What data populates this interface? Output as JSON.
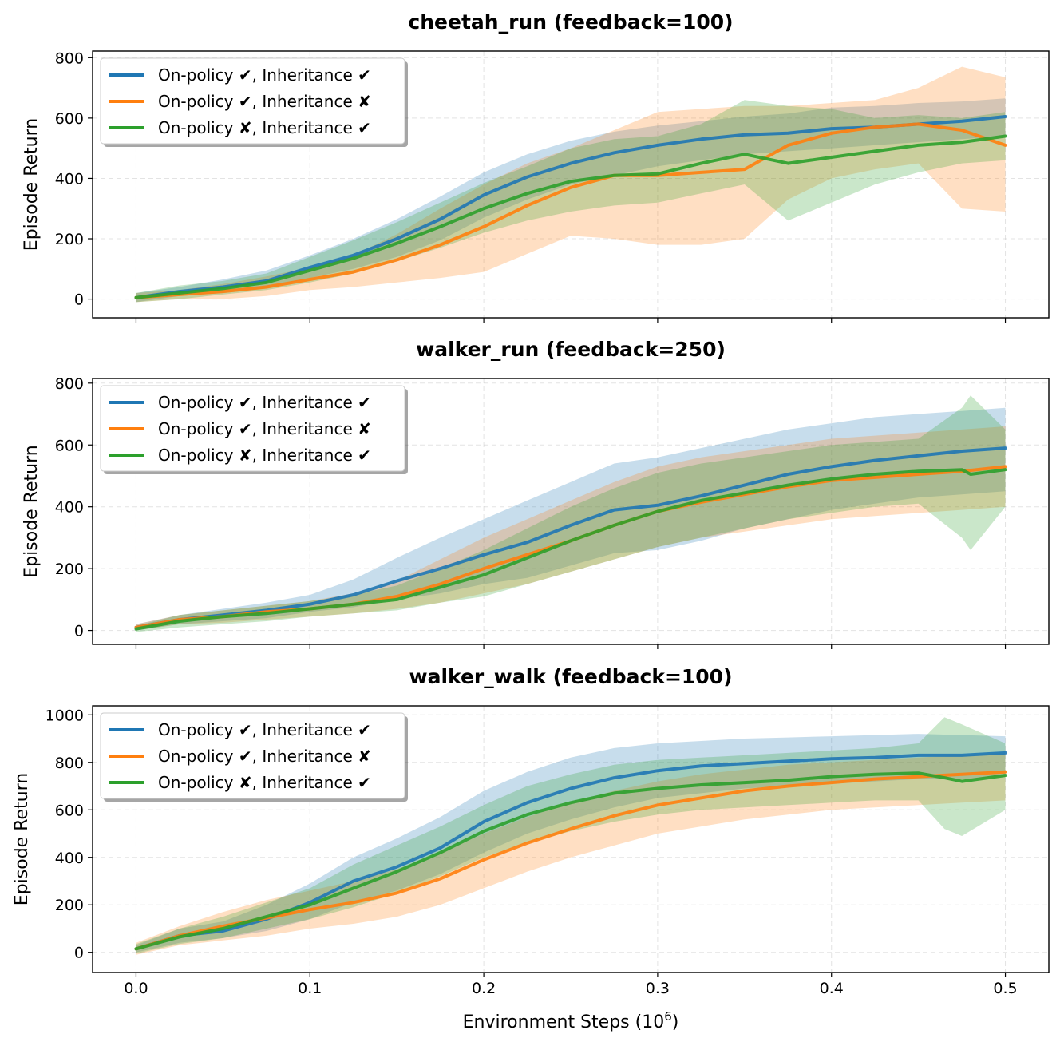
{
  "figure": {
    "xlabel": "Environment Steps (10",
    "xlabel_exp": "6",
    "xlabel_close": ")"
  },
  "colors": {
    "blue": "#1f77b4",
    "orange": "#ff7f0e",
    "green": "#2ca02c"
  },
  "chart_data": [
    {
      "type": "line",
      "title": "cheetah_run (feedback=100)",
      "xlabel": "",
      "ylabel": "Episode Return",
      "xlim": [
        -0.025,
        0.525
      ],
      "ylim": [
        -62,
        822
      ],
      "xticks": [
        0.0,
        0.1,
        0.2,
        0.3,
        0.4,
        0.5
      ],
      "xtick_labels": [
        "",
        "",
        "",
        "",
        "",
        ""
      ],
      "yticks": [
        0,
        200,
        400,
        600,
        800
      ],
      "ytick_labels": [
        "0",
        "200",
        "400",
        "600",
        "800"
      ],
      "grid": true,
      "legend_position": "upper-left",
      "series": [
        {
          "name": "On-policy ✔, Inheritance ✔",
          "color": "#1f77b4",
          "x": [
            0,
            0.025,
            0.05,
            0.075,
            0.1,
            0.125,
            0.15,
            0.175,
            0.2,
            0.225,
            0.25,
            0.275,
            0.3,
            0.325,
            0.35,
            0.375,
            0.4,
            0.425,
            0.45,
            0.475,
            0.5
          ],
          "y": [
            5,
            25,
            40,
            60,
            105,
            145,
            200,
            265,
            345,
            405,
            450,
            485,
            510,
            530,
            545,
            550,
            565,
            570,
            580,
            590,
            605
          ],
          "lower": [
            -10,
            10,
            20,
            35,
            70,
            100,
            140,
            195,
            270,
            330,
            380,
            410,
            440,
            460,
            480,
            490,
            500,
            510,
            520,
            530,
            540
          ],
          "upper": [
            20,
            40,
            65,
            95,
            145,
            200,
            265,
            340,
            420,
            480,
            525,
            555,
            575,
            590,
            605,
            615,
            635,
            640,
            650,
            655,
            665
          ]
        },
        {
          "name": "On-policy ✔, Inheritance ✘",
          "color": "#ff7f0e",
          "x": [
            0,
            0.025,
            0.05,
            0.075,
            0.1,
            0.125,
            0.15,
            0.175,
            0.2,
            0.225,
            0.25,
            0.275,
            0.3,
            0.325,
            0.35,
            0.375,
            0.4,
            0.425,
            0.45,
            0.475,
            0.5
          ],
          "y": [
            5,
            15,
            25,
            40,
            65,
            90,
            130,
            180,
            240,
            310,
            370,
            410,
            410,
            420,
            430,
            510,
            550,
            570,
            580,
            560,
            510
          ],
          "lower": [
            -10,
            0,
            0,
            10,
            30,
            40,
            55,
            70,
            90,
            150,
            210,
            200,
            180,
            180,
            200,
            330,
            400,
            430,
            450,
            300,
            290
          ],
          "upper": [
            20,
            30,
            50,
            75,
            105,
            145,
            215,
            300,
            380,
            450,
            500,
            560,
            620,
            630,
            640,
            640,
            650,
            660,
            700,
            770,
            735
          ]
        },
        {
          "name": "On-policy ✘, Inheritance ✔",
          "color": "#2ca02c",
          "x": [
            0,
            0.025,
            0.05,
            0.075,
            0.1,
            0.125,
            0.15,
            0.175,
            0.2,
            0.225,
            0.25,
            0.275,
            0.3,
            0.325,
            0.35,
            0.375,
            0.4,
            0.425,
            0.45,
            0.475,
            0.5
          ],
          "y": [
            5,
            20,
            35,
            55,
            95,
            135,
            185,
            240,
            300,
            350,
            390,
            410,
            415,
            450,
            480,
            450,
            470,
            490,
            510,
            520,
            540
          ],
          "lower": [
            -10,
            0,
            15,
            30,
            55,
            85,
            125,
            170,
            220,
            260,
            290,
            310,
            320,
            350,
            380,
            260,
            320,
            380,
            420,
            450,
            460
          ],
          "upper": [
            20,
            45,
            60,
            85,
            140,
            195,
            255,
            320,
            385,
            440,
            500,
            530,
            540,
            580,
            660,
            640,
            630,
            600,
            610,
            600,
            620
          ]
        }
      ]
    },
    {
      "type": "line",
      "title": "walker_run (feedback=250)",
      "xlabel": "",
      "ylabel": "Episode Return",
      "xlim": [
        -0.025,
        0.525
      ],
      "ylim": [
        -45,
        815
      ],
      "xticks": [
        0.0,
        0.1,
        0.2,
        0.3,
        0.4,
        0.5
      ],
      "xtick_labels": [
        "",
        "",
        "",
        "",
        "",
        ""
      ],
      "yticks": [
        0,
        200,
        400,
        600,
        800
      ],
      "ytick_labels": [
        "0",
        "200",
        "400",
        "600",
        "800"
      ],
      "grid": true,
      "legend_position": "upper-left",
      "series": [
        {
          "name": "On-policy ✔, Inheritance ✔",
          "color": "#1f77b4",
          "x": [
            0,
            0.025,
            0.05,
            0.075,
            0.1,
            0.125,
            0.15,
            0.175,
            0.2,
            0.225,
            0.25,
            0.275,
            0.3,
            0.325,
            0.35,
            0.375,
            0.4,
            0.425,
            0.45,
            0.475,
            0.5
          ],
          "y": [
            10,
            35,
            50,
            65,
            85,
            115,
            160,
            200,
            245,
            285,
            340,
            390,
            405,
            435,
            470,
            505,
            530,
            550,
            565,
            580,
            590
          ],
          "lower": [
            0,
            20,
            30,
            40,
            60,
            75,
            100,
            120,
            150,
            170,
            210,
            250,
            260,
            290,
            330,
            360,
            390,
            410,
            430,
            440,
            450
          ],
          "upper": [
            20,
            50,
            70,
            90,
            115,
            165,
            235,
            300,
            360,
            420,
            480,
            540,
            560,
            590,
            620,
            650,
            670,
            690,
            700,
            710,
            720
          ]
        },
        {
          "name": "On-policy ✔, Inheritance ✘",
          "color": "#ff7f0e",
          "x": [
            0,
            0.025,
            0.05,
            0.075,
            0.1,
            0.125,
            0.15,
            0.175,
            0.2,
            0.225,
            0.25,
            0.275,
            0.3,
            0.325,
            0.35,
            0.375,
            0.4,
            0.425,
            0.45,
            0.475,
            0.5
          ],
          "y": [
            10,
            35,
            45,
            60,
            70,
            85,
            110,
            150,
            200,
            245,
            290,
            340,
            385,
            415,
            440,
            465,
            485,
            495,
            505,
            515,
            530
          ],
          "lower": [
            0,
            20,
            25,
            35,
            45,
            55,
            70,
            90,
            120,
            150,
            190,
            230,
            270,
            300,
            320,
            340,
            360,
            370,
            380,
            390,
            400
          ],
          "upper": [
            20,
            50,
            65,
            80,
            95,
            120,
            160,
            230,
            300,
            360,
            420,
            480,
            530,
            560,
            580,
            600,
            620,
            630,
            640,
            650,
            660
          ]
        },
        {
          "name": "On-policy ✘, Inheritance ✔",
          "color": "#2ca02c",
          "x": [
            0,
            0.025,
            0.05,
            0.075,
            0.1,
            0.125,
            0.15,
            0.175,
            0.2,
            0.225,
            0.25,
            0.275,
            0.3,
            0.325,
            0.35,
            0.375,
            0.4,
            0.425,
            0.45,
            0.475,
            0.48,
            0.5
          ],
          "y": [
            5,
            30,
            45,
            55,
            70,
            85,
            100,
            140,
            180,
            235,
            290,
            340,
            385,
            420,
            445,
            470,
            490,
            505,
            515,
            520,
            505,
            520
          ],
          "lower": [
            -5,
            10,
            20,
            30,
            45,
            55,
            65,
            90,
            110,
            150,
            190,
            230,
            270,
            300,
            330,
            360,
            380,
            400,
            410,
            300,
            260,
            400
          ],
          "upper": [
            15,
            50,
            65,
            80,
            95,
            115,
            145,
            200,
            260,
            330,
            400,
            460,
            510,
            540,
            560,
            580,
            600,
            610,
            620,
            720,
            760,
            650
          ]
        }
      ]
    },
    {
      "type": "line",
      "title": "walker_walk (feedback=100)",
      "xlabel": "Environment Steps (10^6)",
      "ylabel": "Episode Return",
      "xlim": [
        -0.025,
        0.525
      ],
      "ylim": [
        -85,
        1038
      ],
      "xticks": [
        0.0,
        0.1,
        0.2,
        0.3,
        0.4,
        0.5
      ],
      "xtick_labels": [
        "0.0",
        "0.1",
        "0.2",
        "0.3",
        "0.4",
        "0.5"
      ],
      "yticks": [
        0,
        200,
        400,
        600,
        800,
        1000
      ],
      "ytick_labels": [
        "0",
        "200",
        "400",
        "600",
        "800",
        "1000"
      ],
      "grid": true,
      "legend_position": "upper-left",
      "series": [
        {
          "name": "On-policy ✔, Inheritance ✔",
          "color": "#1f77b4",
          "x": [
            0,
            0.025,
            0.05,
            0.075,
            0.1,
            0.125,
            0.15,
            0.175,
            0.2,
            0.225,
            0.25,
            0.275,
            0.3,
            0.325,
            0.35,
            0.375,
            0.4,
            0.425,
            0.45,
            0.475,
            0.5
          ],
          "y": [
            15,
            70,
            90,
            140,
            210,
            300,
            360,
            440,
            550,
            630,
            690,
            735,
            765,
            785,
            795,
            805,
            815,
            820,
            830,
            830,
            840
          ],
          "lower": [
            0,
            40,
            60,
            90,
            140,
            210,
            260,
            330,
            420,
            500,
            560,
            610,
            650,
            670,
            690,
            700,
            710,
            720,
            730,
            730,
            740
          ],
          "upper": [
            30,
            100,
            130,
            200,
            290,
            400,
            480,
            570,
            680,
            760,
            820,
            860,
            880,
            890,
            900,
            905,
            910,
            915,
            920,
            915,
            910
          ]
        },
        {
          "name": "On-policy ✔, Inheritance ✘",
          "color": "#ff7f0e",
          "x": [
            0,
            0.025,
            0.05,
            0.075,
            0.1,
            0.125,
            0.15,
            0.175,
            0.2,
            0.225,
            0.25,
            0.275,
            0.3,
            0.325,
            0.35,
            0.375,
            0.4,
            0.425,
            0.45,
            0.475,
            0.5
          ],
          "y": [
            15,
            70,
            110,
            145,
            180,
            210,
            250,
            310,
            390,
            460,
            520,
            575,
            620,
            650,
            680,
            700,
            715,
            730,
            740,
            750,
            760
          ],
          "lower": [
            -10,
            30,
            50,
            70,
            100,
            120,
            150,
            200,
            270,
            340,
            400,
            450,
            500,
            530,
            560,
            580,
            600,
            610,
            620,
            630,
            640
          ],
          "upper": [
            40,
            110,
            170,
            220,
            260,
            300,
            350,
            420,
            500,
            570,
            630,
            680,
            720,
            750,
            770,
            790,
            800,
            810,
            820,
            830,
            840
          ]
        },
        {
          "name": "On-policy ✘, Inheritance ✔",
          "color": "#2ca02c",
          "x": [
            0,
            0.025,
            0.05,
            0.075,
            0.1,
            0.125,
            0.15,
            0.175,
            0.2,
            0.225,
            0.25,
            0.275,
            0.3,
            0.325,
            0.35,
            0.375,
            0.4,
            0.425,
            0.45,
            0.465,
            0.475,
            0.5
          ],
          "y": [
            15,
            65,
            100,
            150,
            200,
            270,
            340,
            420,
            510,
            580,
            630,
            670,
            690,
            705,
            715,
            725,
            740,
            750,
            755,
            735,
            720,
            745
          ],
          "lower": [
            -5,
            35,
            60,
            100,
            140,
            190,
            250,
            320,
            400,
            460,
            510,
            550,
            580,
            600,
            610,
            620,
            630,
            640,
            640,
            520,
            490,
            600
          ],
          "upper": [
            35,
            100,
            150,
            210,
            270,
            370,
            450,
            530,
            620,
            700,
            750,
            790,
            810,
            820,
            830,
            840,
            850,
            860,
            880,
            990,
            960,
            880
          ]
        }
      ]
    }
  ]
}
